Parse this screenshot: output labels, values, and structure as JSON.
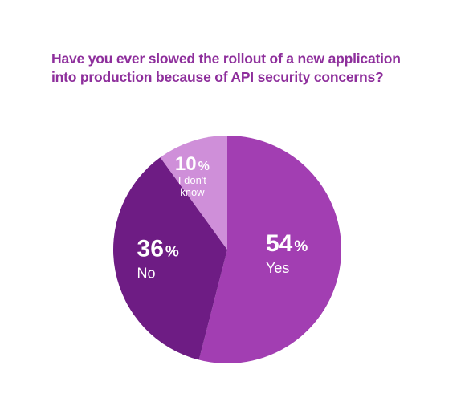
{
  "chart_data": {
    "type": "pie",
    "title": "Have you ever slowed the rollout of a new application into production because of API security concerns?",
    "title_lines": [
      "Have you ever slowed the rollout of a new application",
      "into production because of API security concerns?"
    ],
    "slices": [
      {
        "label": "Yes",
        "label_lines": [
          "Yes"
        ],
        "value": 54,
        "display": "54",
        "color": "#a23eb2"
      },
      {
        "label": "No",
        "label_lines": [
          "No"
        ],
        "value": 36,
        "display": "36",
        "color": "#6e1c84"
      },
      {
        "label": "I don't know",
        "label_lines": [
          "I don't",
          "know"
        ],
        "value": 10,
        "display": "10",
        "color": "#cf8fd9"
      }
    ],
    "percent_sign": "%",
    "start_angle_deg": 0,
    "direction": "clockwise",
    "legend": "none"
  },
  "colors": {
    "title": "#8e2f9c",
    "label_text": "#ffffff"
  }
}
